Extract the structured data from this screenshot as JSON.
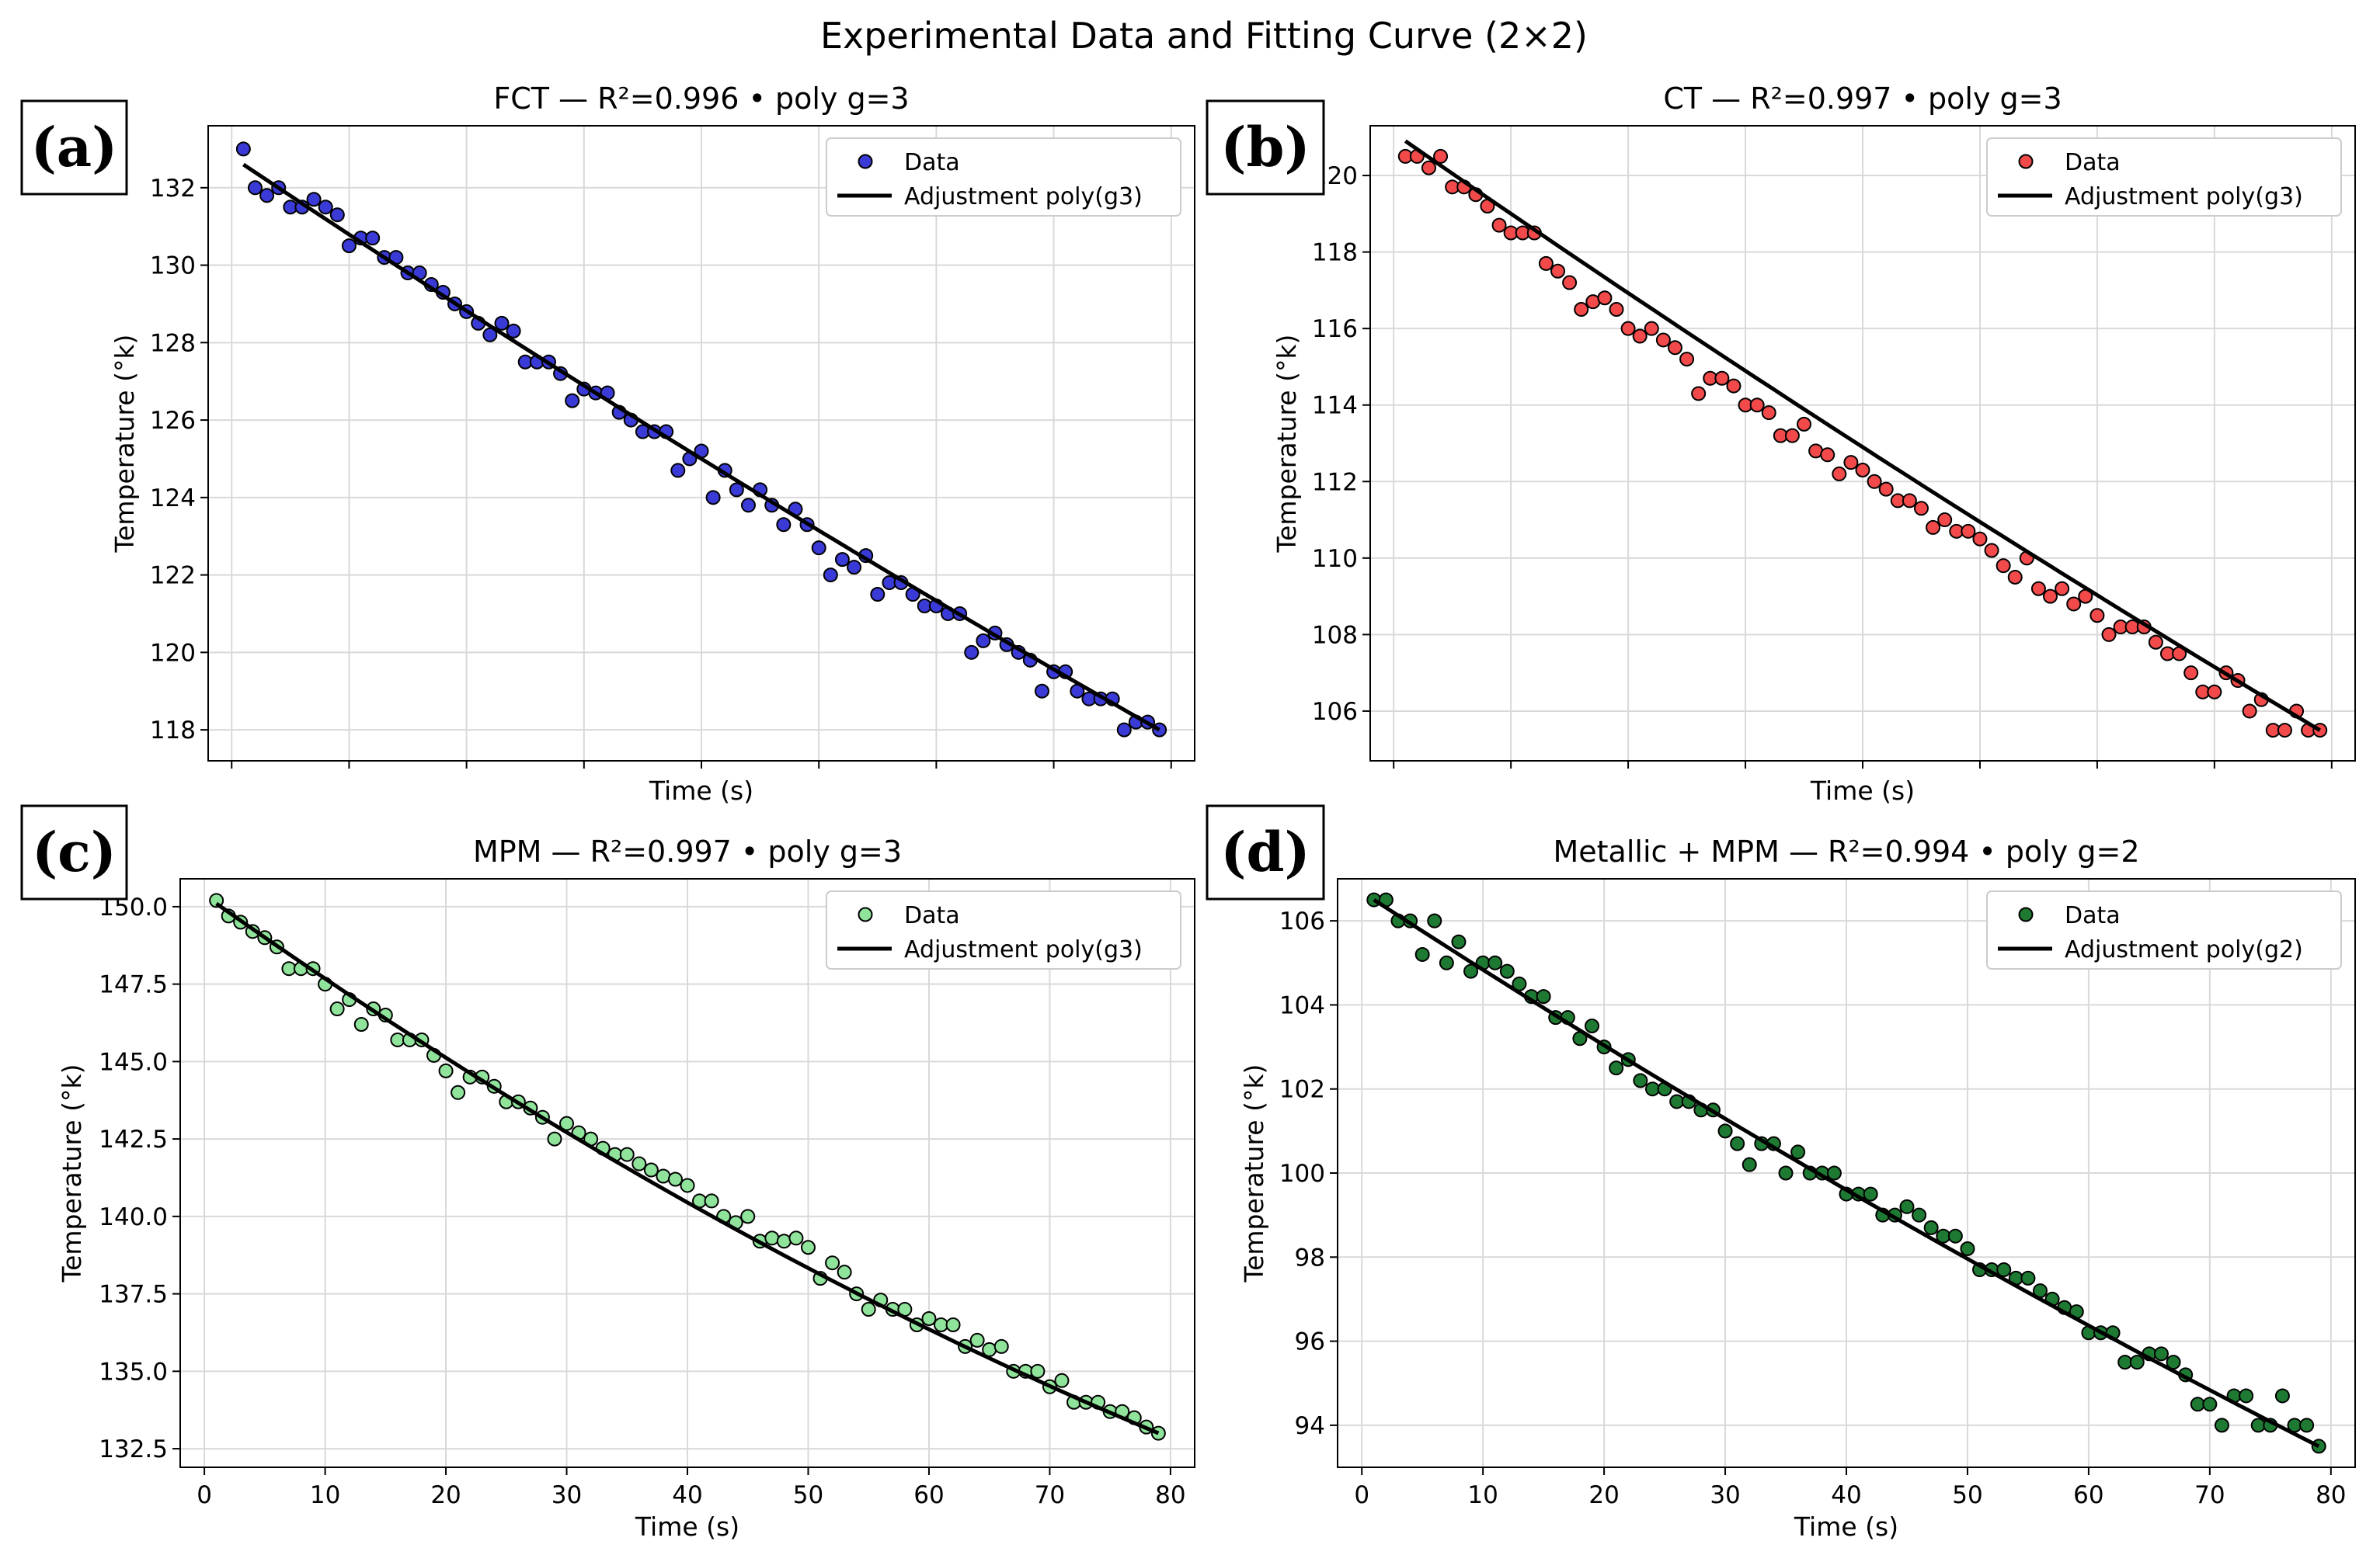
{
  "suptitle": "Experimental Data and Fitting Curve (2×2)",
  "chart_data": [
    {
      "type": "scatter",
      "panel_label": "(a)",
      "title": "FCT — R²=0.996 • poly g=3",
      "xlabel": "Time (s)",
      "ylabel": "Temperature (°k)",
      "xlim": [
        -2,
        82
      ],
      "ylim": [
        117.2,
        133.6
      ],
      "xticks": [
        0,
        10,
        20,
        30,
        40,
        50,
        60,
        70,
        80
      ],
      "yticks": [
        118,
        120,
        122,
        124,
        126,
        128,
        130,
        132
      ],
      "show_x_ticklabels": false,
      "marker_color": "#3a3ad6",
      "legend": {
        "location": "top-right",
        "data_label": "Data",
        "fit_label": "Adjustment poly(g3)"
      },
      "fit": {
        "x0": 1,
        "x1": 79,
        "y0": 132.6,
        "y1": 118.0,
        "curvature": 0.3
      },
      "x": [
        1,
        2,
        3,
        4,
        5,
        6,
        7,
        8,
        9,
        10,
        11,
        12,
        13,
        14,
        15,
        16,
        17,
        18,
        19,
        20,
        21,
        22,
        23,
        24,
        25,
        26,
        27,
        28,
        29,
        30,
        31,
        32,
        33,
        34,
        35,
        36,
        37,
        38,
        39,
        40,
        41,
        42,
        43,
        44,
        45,
        46,
        47,
        48,
        49,
        50,
        51,
        52,
        53,
        54,
        55,
        56,
        57,
        58,
        59,
        60,
        61,
        62,
        63,
        64,
        65,
        66,
        67,
        68,
        69,
        70,
        71,
        72,
        73,
        74,
        75,
        76,
        77,
        78,
        79
      ],
      "y": [
        133.0,
        132.0,
        131.8,
        132.0,
        131.5,
        131.5,
        131.7,
        131.5,
        131.3,
        130.5,
        130.7,
        130.7,
        130.2,
        130.2,
        129.8,
        129.8,
        129.5,
        129.3,
        129.0,
        128.8,
        128.5,
        128.2,
        128.5,
        128.3,
        127.5,
        127.5,
        127.5,
        127.2,
        126.5,
        126.8,
        126.7,
        126.7,
        126.2,
        126.0,
        125.7,
        125.7,
        125.7,
        124.7,
        125.0,
        125.2,
        124.0,
        124.7,
        124.2,
        123.8,
        124.2,
        123.8,
        123.3,
        123.7,
        123.3,
        122.7,
        122.0,
        122.4,
        122.2,
        122.5,
        121.5,
        121.8,
        121.8,
        121.5,
        121.2,
        121.2,
        121.0,
        121.0,
        120.0,
        120.3,
        120.5,
        120.2,
        120.0,
        119.8,
        119.0,
        119.5,
        119.5,
        119.0,
        118.8,
        118.8,
        118.8,
        118.0,
        118.2,
        118.2,
        118.0
      ]
    },
    {
      "type": "scatter",
      "panel_label": "(b)",
      "title": "CT — R²=0.997 • poly g=3",
      "xlabel": "Time (s)",
      "ylabel": "Temperature (°k)",
      "xlim": [
        -2,
        82
      ],
      "ylim": [
        104.7,
        121.3
      ],
      "xticks": [
        0,
        10,
        20,
        30,
        40,
        50,
        60,
        70,
        80
      ],
      "yticks": [
        106,
        108,
        110,
        112,
        114,
        116,
        118,
        120
      ],
      "show_x_ticklabels": false,
      "marker_color": "#f24a4a",
      "legend": {
        "location": "top-right",
        "data_label": "Data",
        "fit_label": "Adjustment poly(g3)"
      },
      "fit": {
        "x0": 1,
        "x1": 79,
        "y0": 120.9,
        "y1": 105.5,
        "curvature": 0.3
      },
      "x": [
        1,
        2,
        3,
        4,
        5,
        6,
        7,
        8,
        9,
        10,
        11,
        12,
        13,
        14,
        15,
        16,
        17,
        18,
        19,
        20,
        21,
        22,
        23,
        24,
        25,
        26,
        27,
        28,
        29,
        30,
        31,
        32,
        33,
        34,
        35,
        36,
        37,
        38,
        39,
        40,
        41,
        42,
        43,
        44,
        45,
        46,
        47,
        48,
        49,
        50,
        51,
        52,
        53,
        54,
        55,
        56,
        57,
        58,
        59,
        60,
        61,
        62,
        63,
        64,
        65,
        66,
        67,
        68,
        69,
        70,
        71,
        72,
        73,
        74,
        75,
        76,
        77,
        78,
        79
      ],
      "y": [
        120.5,
        120.5,
        120.2,
        120.5,
        119.7,
        119.7,
        119.5,
        119.2,
        118.7,
        118.5,
        118.5,
        118.5,
        117.7,
        117.5,
        117.2,
        116.5,
        116.7,
        116.8,
        116.5,
        116.0,
        115.8,
        116.0,
        115.7,
        115.5,
        115.2,
        114.3,
        114.7,
        114.7,
        114.5,
        114.0,
        114.0,
        113.8,
        113.2,
        113.2,
        113.5,
        112.8,
        112.7,
        112.2,
        112.5,
        112.3,
        112.0,
        111.8,
        111.5,
        111.5,
        111.3,
        110.8,
        111.0,
        110.7,
        110.7,
        110.5,
        110.2,
        109.8,
        109.5,
        110.0,
        109.2,
        109.0,
        109.2,
        108.8,
        109.0,
        108.5,
        108.0,
        108.2,
        108.2,
        108.2,
        107.8,
        107.5,
        107.5,
        107.0,
        106.5,
        106.5,
        107.0,
        106.8,
        106.0,
        106.3,
        105.5,
        105.5,
        106.0,
        105.5,
        105.5
      ]
    },
    {
      "type": "scatter",
      "panel_label": "(c)",
      "title": "MPM — R²=0.997 • poly g=3",
      "xlabel": "Time (s)",
      "ylabel": "Temperature (°k)",
      "xlim": [
        -2,
        82
      ],
      "ylim": [
        131.9,
        150.9
      ],
      "xticks": [
        0,
        10,
        20,
        30,
        40,
        50,
        60,
        70,
        80
      ],
      "yticks": [
        132.5,
        135.0,
        137.5,
        140.0,
        142.5,
        145.0,
        147.5,
        150.0
      ],
      "ytick_labels": [
        "132.5",
        "135.0",
        "137.5",
        "140.0",
        "142.5",
        "145.0",
        "147.5",
        "150.0"
      ],
      "xtick_labels": [
        "0",
        "10",
        "20",
        "30",
        "40",
        "50",
        "60",
        "70",
        "80"
      ],
      "show_x_ticklabels": true,
      "marker_color": "#8fe39a",
      "legend": {
        "location": "top-right",
        "data_label": "Data",
        "fit_label": "Adjustment poly(g3)"
      },
      "fit": {
        "x0": 1,
        "x1": 79,
        "y0": 150.1,
        "y1": 133.0,
        "curvature": 1.1
      },
      "x": [
        1,
        2,
        3,
        4,
        5,
        6,
        7,
        8,
        9,
        10,
        11,
        12,
        13,
        14,
        15,
        16,
        17,
        18,
        19,
        20,
        21,
        22,
        23,
        24,
        25,
        26,
        27,
        28,
        29,
        30,
        31,
        32,
        33,
        34,
        35,
        36,
        37,
        38,
        39,
        40,
        41,
        42,
        43,
        44,
        45,
        46,
        47,
        48,
        49,
        50,
        51,
        52,
        53,
        54,
        55,
        56,
        57,
        58,
        59,
        60,
        61,
        62,
        63,
        64,
        65,
        66,
        67,
        68,
        69,
        70,
        71,
        72,
        73,
        74,
        75,
        76,
        77,
        78,
        79
      ],
      "y": [
        150.2,
        149.7,
        149.5,
        149.2,
        149.0,
        148.7,
        148.0,
        148.0,
        148.0,
        147.5,
        146.7,
        147.0,
        146.2,
        146.7,
        146.5,
        145.7,
        145.7,
        145.7,
        145.2,
        144.7,
        144.0,
        144.5,
        144.5,
        144.2,
        143.7,
        143.7,
        143.5,
        143.2,
        142.5,
        143.0,
        142.7,
        142.5,
        142.2,
        142.0,
        142.0,
        141.7,
        141.5,
        141.3,
        141.2,
        141.0,
        140.5,
        140.5,
        140.0,
        139.8,
        140.0,
        139.2,
        139.3,
        139.2,
        139.3,
        139.0,
        138.0,
        138.5,
        138.2,
        137.5,
        137.0,
        137.3,
        137.0,
        137.0,
        136.5,
        136.7,
        136.5,
        136.5,
        135.8,
        136.0,
        135.7,
        135.8,
        135.0,
        135.0,
        135.0,
        134.5,
        134.7,
        134.0,
        134.0,
        134.0,
        133.7,
        133.7,
        133.5,
        133.2,
        133.0
      ]
    },
    {
      "type": "scatter",
      "panel_label": "(d)",
      "title": "Metallic + MPM — R²=0.994 • poly g=2",
      "xlabel": "Time (s)",
      "ylabel": "Temperature (°k)",
      "xlim": [
        -2,
        82
      ],
      "ylim": [
        93.0,
        107.0
      ],
      "xticks": [
        0,
        10,
        20,
        30,
        40,
        50,
        60,
        70,
        80
      ],
      "yticks": [
        94,
        96,
        98,
        100,
        102,
        104,
        106
      ],
      "xtick_labels": [
        "0",
        "10",
        "20",
        "30",
        "40",
        "50",
        "60",
        "70",
        "80"
      ],
      "show_x_ticklabels": true,
      "marker_color": "#1e7a32",
      "legend": {
        "location": "top-right",
        "data_label": "Data",
        "fit_label": "Adjustment poly(g2)"
      },
      "fit": {
        "x0": 1,
        "x1": 79,
        "y0": 106.5,
        "y1": 93.5,
        "curvature": 0.4
      },
      "x": [
        1,
        2,
        3,
        4,
        5,
        6,
        7,
        8,
        9,
        10,
        11,
        12,
        13,
        14,
        15,
        16,
        17,
        18,
        19,
        20,
        21,
        22,
        23,
        24,
        25,
        26,
        27,
        28,
        29,
        30,
        31,
        32,
        33,
        34,
        35,
        36,
        37,
        38,
        39,
        40,
        41,
        42,
        43,
        44,
        45,
        46,
        47,
        48,
        49,
        50,
        51,
        52,
        53,
        54,
        55,
        56,
        57,
        58,
        59,
        60,
        61,
        62,
        63,
        64,
        65,
        66,
        67,
        68,
        69,
        70,
        71,
        72,
        73,
        74,
        75,
        76,
        77,
        78,
        79
      ],
      "y": [
        106.5,
        106.5,
        106.0,
        106.0,
        105.2,
        106.0,
        105.0,
        105.5,
        104.8,
        105.0,
        105.0,
        104.8,
        104.5,
        104.2,
        104.2,
        103.7,
        103.7,
        103.2,
        103.5,
        103.0,
        102.5,
        102.7,
        102.2,
        102.0,
        102.0,
        101.7,
        101.7,
        101.5,
        101.5,
        101.0,
        100.7,
        100.2,
        100.7,
        100.7,
        100.0,
        100.5,
        100.0,
        100.0,
        100.0,
        99.5,
        99.5,
        99.5,
        99.0,
        99.0,
        99.2,
        99.0,
        98.7,
        98.5,
        98.5,
        98.2,
        97.7,
        97.7,
        97.7,
        97.5,
        97.5,
        97.2,
        97.0,
        96.8,
        96.7,
        96.2,
        96.2,
        96.2,
        95.5,
        95.5,
        95.7,
        95.7,
        95.5,
        95.2,
        94.5,
        94.5,
        94.0,
        94.7,
        94.7,
        94.0,
        94.0,
        94.7,
        94.0,
        94.0,
        93.5
      ]
    }
  ]
}
